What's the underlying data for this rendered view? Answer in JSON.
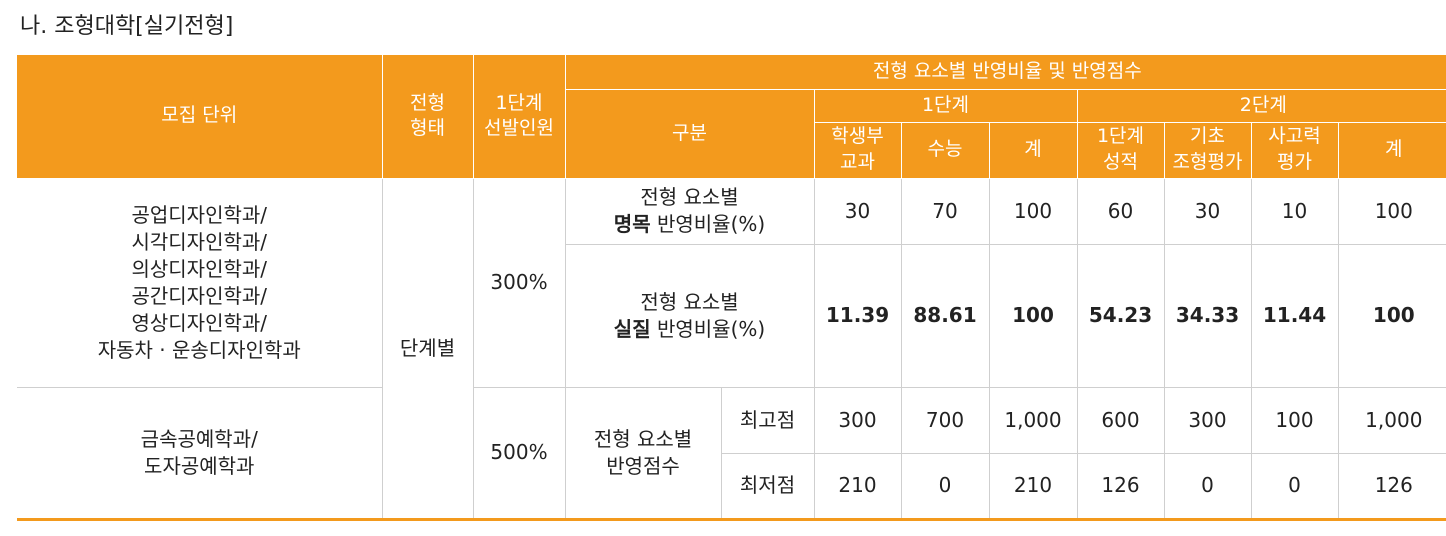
{
  "title": "나. 조형대학[실기전형]",
  "header": {
    "unit": "모집 단위",
    "type": "전형\n형태",
    "select": "1단계\n선발인원",
    "group_top": "전형 요소별 반영비율 및 반영점수",
    "category": "구분",
    "stage1": "1단계",
    "stage2": "2단계",
    "cols": [
      "학생부\n교과",
      "수능",
      "계",
      "1단계\n성적",
      "기초\n조형평가",
      "사고력\n평가",
      "계"
    ]
  },
  "groups": [
    {
      "units": "공업디자인학과/\n시각디자인학과/\n의상디자인학과/\n공간디자인학과/\n영상디자인학과/\n자동차 · 운송디자인학과",
      "selection": "300%"
    },
    {
      "units": "금속공예학과/\n도자공예학과",
      "selection": "500%"
    }
  ],
  "type_value": "단계별",
  "rows": {
    "nominal": {
      "label_pre": "전형 요소별",
      "label_bold": "명목",
      "label_post": " 반영비율(%)",
      "values": [
        "30",
        "70",
        "100",
        "60",
        "30",
        "10",
        "100"
      ]
    },
    "actual": {
      "label_pre": "전형 요소별",
      "label_bold": "실질",
      "label_post": " 반영비율(%)",
      "values": [
        "11.39",
        "88.61",
        "100",
        "54.23",
        "34.33",
        "11.44",
        "100"
      ]
    },
    "score_label": "전형 요소별\n반영점수",
    "max": {
      "label": "최고점",
      "values": [
        "300",
        "700",
        "1,000",
        "600",
        "300",
        "100",
        "1,000"
      ]
    },
    "min": {
      "label": "최저점",
      "values": [
        "210",
        "0",
        "210",
        "126",
        "0",
        "0",
        "126"
      ]
    }
  },
  "colors": {
    "accent": "#f39a1d",
    "grid": "#cfcfcf",
    "text": "#222222"
  }
}
